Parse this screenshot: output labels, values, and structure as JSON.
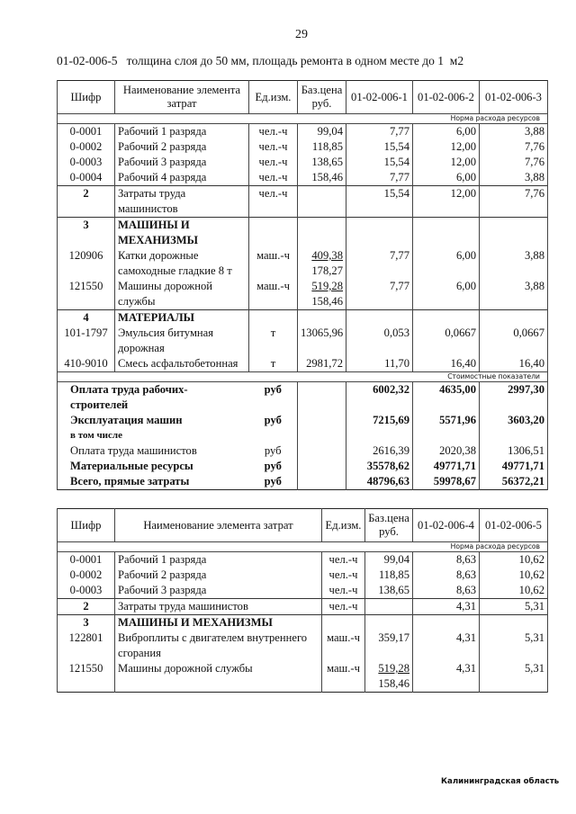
{
  "page_number": "29",
  "title": "01-02-006-5   толщина слоя до 50 мм, площадь ремонта в одном месте до 1  м2",
  "table1": {
    "headers": [
      "Шифр",
      "Наименование элемента\nзатрат",
      "Ед.изм.",
      "Баз.цена\nруб.",
      "01-02-006-1",
      "01-02-006-2",
      "01-02-006-3"
    ],
    "norm_label": "Норма расхода ресурсов",
    "rows": [
      {
        "code": "0-0001",
        "name": "Рабочий 1 разряда",
        "unit": "чел.-ч",
        "price": "99,04",
        "values": [
          "7,77",
          "6,00",
          "3,88"
        ],
        "top": true
      },
      {
        "code": "0-0002",
        "name": "Рабочий 2 разряда",
        "unit": "чел.-ч",
        "price": "118,85",
        "values": [
          "15,54",
          "12,00",
          "7,76"
        ]
      },
      {
        "code": "0-0003",
        "name": "Рабочий 3 разряда",
        "unit": "чел.-ч",
        "price": "138,65",
        "values": [
          "15,54",
          "12,00",
          "7,76"
        ]
      },
      {
        "code": "0-0004",
        "name": "Рабочий 4 разряда",
        "unit": "чел.-ч",
        "price": "158,46",
        "values": [
          "7,77",
          "6,00",
          "3,88"
        ]
      },
      {
        "code": "2",
        "name": "Затраты труда\nмашинистов",
        "unit": "чел.-ч",
        "price": "",
        "values": [
          "15,54",
          "12,00",
          "7,76"
        ],
        "top": true,
        "code_bold": true
      },
      {
        "code": "3",
        "name": "МАШИНЫ И\nМЕХАНИЗМЫ",
        "unit": "",
        "price": "",
        "values": [
          "",
          "",
          ""
        ],
        "top": true,
        "code_bold": true,
        "name_bold": true
      },
      {
        "code": "120906",
        "name": "Катки дорожные\nсамоходные гладкие 8 т",
        "unit": "маш.-ч",
        "price": "409,38",
        "price_sub": "178,27",
        "values": [
          "7,77",
          "6,00",
          "3,88"
        ]
      },
      {
        "code": "121550",
        "name": "Машины дорожной\nслужбы",
        "unit": "маш.-ч",
        "price": "519,28",
        "price_sub": "158,46",
        "values": [
          "7,77",
          "6,00",
          "3,88"
        ]
      },
      {
        "code": "4",
        "name": "МАТЕРИАЛЫ",
        "unit": "",
        "price": "",
        "values": [
          "",
          "",
          ""
        ],
        "top": true,
        "code_bold": true,
        "name_bold": true
      },
      {
        "code": "101-1797",
        "name": "Эмульсия битумная\nдорожная",
        "unit": "т",
        "price": "13065,96",
        "values": [
          "0,053",
          "0,0667",
          "0,0667"
        ]
      },
      {
        "code": "410-9010",
        "name": "Смесь асфальтобетонная",
        "unit": "т",
        "price": "2981,72",
        "values": [
          "11,70",
          "16,40",
          "16,40"
        ]
      }
    ],
    "cost_label": "Стоимостные показатели",
    "cost_rows": [
      {
        "label": "Оплата труда рабочих-\nстроителей",
        "unit": "руб",
        "values": [
          "6002,32",
          "4635,00",
          "2997,30"
        ],
        "bold": true
      },
      {
        "label": "Эксплуатация машин",
        "unit": "руб",
        "values": [
          "7215,69",
          "5571,96",
          "3603,20"
        ],
        "bold": true
      },
      {
        "label": "в том числе",
        "unit": "",
        "values": [
          "",
          "",
          ""
        ],
        "bold": true,
        "small": true
      },
      {
        "label": "Оплата труда машинистов",
        "unit": "руб",
        "values": [
          "2616,39",
          "2020,38",
          "1306,51"
        ],
        "bold": false
      },
      {
        "label": "Материальные ресурсы",
        "unit": "руб",
        "values": [
          "35578,62",
          "49771,71",
          "49771,71"
        ],
        "bold": true
      },
      {
        "label": "Всего, прямые затраты",
        "unit": "руб",
        "values": [
          "48796,63",
          "59978,67",
          "56372,21"
        ],
        "bold": true
      }
    ]
  },
  "table2": {
    "headers": [
      "Шифр",
      "Наименование элемента затрат",
      "Ед.изм.",
      "Баз.цена\nруб.",
      "01-02-006-4",
      "01-02-006-5"
    ],
    "norm_label": "Норма расхода ресурсов",
    "rows": [
      {
        "code": "0-0001",
        "name": "Рабочий 1 разряда",
        "unit": "чел.-ч",
        "price": "99,04",
        "values": [
          "8,63",
          "10,62"
        ],
        "top": true
      },
      {
        "code": "0-0002",
        "name": "Рабочий 2 разряда",
        "unit": "чел.-ч",
        "price": "118,85",
        "values": [
          "8,63",
          "10,62"
        ]
      },
      {
        "code": "0-0003",
        "name": "Рабочий 3 разряда",
        "unit": "чел.-ч",
        "price": "138,65",
        "values": [
          "8,63",
          "10,62"
        ]
      },
      {
        "code": "2",
        "name": "Затраты труда машинистов",
        "unit": "чел.-ч",
        "price": "",
        "values": [
          "4,31",
          "5,31"
        ],
        "top": true,
        "code_bold": true
      },
      {
        "code": "3",
        "name": "МАШИНЫ И МЕХАНИЗМЫ",
        "unit": "",
        "price": "",
        "values": [
          "",
          ""
        ],
        "top": true,
        "code_bold": true,
        "name_bold": true
      },
      {
        "code": "122801",
        "name": "Виброплиты с двигателем внутреннего\nсгорания",
        "unit": "маш.-ч",
        "price": "359,17",
        "values": [
          "4,31",
          "5,31"
        ]
      },
      {
        "code": "121550",
        "name": "Машины дорожной службы",
        "unit": "маш.-ч",
        "price": "519,28",
        "price_sub": "158,46",
        "values": [
          "4,31",
          "5,31"
        ]
      }
    ]
  },
  "footer": "Калининградская область"
}
